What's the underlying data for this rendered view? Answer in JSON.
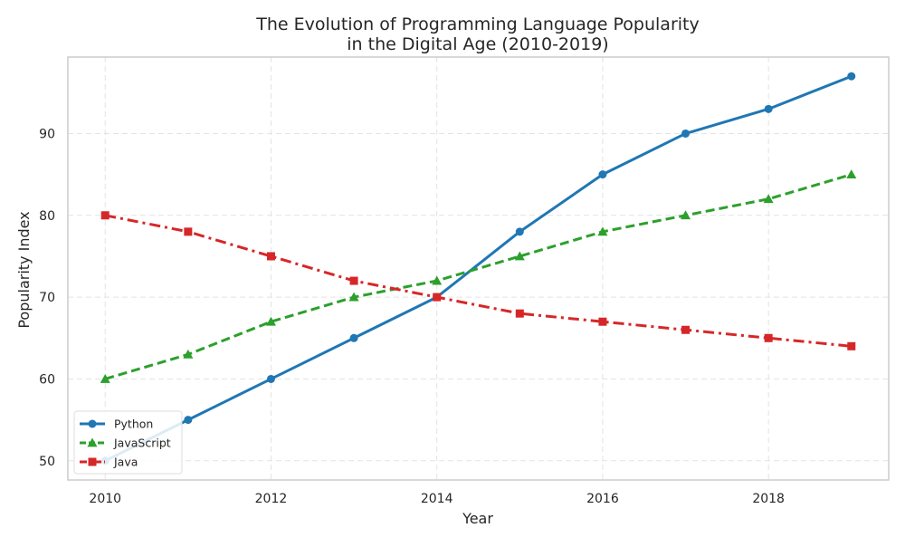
{
  "chart_data": {
    "type": "line",
    "title_line1": "The Evolution of Programming Language Popularity",
    "title_line2": "in the Digital Age (2010-2019)",
    "xlabel": "Year",
    "ylabel": "Popularity Index",
    "x": [
      2010,
      2011,
      2012,
      2013,
      2014,
      2015,
      2016,
      2017,
      2018,
      2019
    ],
    "xticks": [
      2010,
      2012,
      2014,
      2016,
      2018
    ],
    "yticks": [
      50,
      60,
      70,
      80,
      90
    ],
    "xlim": [
      2009.55,
      2019.45
    ],
    "ylim": [
      47.65,
      99.35
    ],
    "grid": true,
    "legend_position": "lower-left",
    "series": [
      {
        "name": "Python",
        "values": [
          50,
          55,
          60,
          65,
          70,
          78,
          85,
          90,
          93,
          97
        ],
        "color": "#1f77b4",
        "marker": "circle",
        "linestyle": "solid"
      },
      {
        "name": "JavaScript",
        "values": [
          60,
          63,
          67,
          70,
          72,
          75,
          78,
          80,
          82,
          85
        ],
        "color": "#2ca02c",
        "marker": "triangle",
        "linestyle": "dashed"
      },
      {
        "name": "Java",
        "values": [
          80,
          78,
          75,
          72,
          70,
          68,
          67,
          66,
          65,
          64
        ],
        "color": "#d62728",
        "marker": "square",
        "linestyle": "dashdot"
      }
    ]
  }
}
